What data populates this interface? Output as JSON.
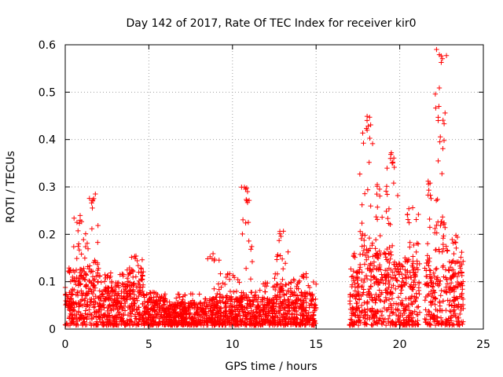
{
  "chart_data": {
    "type": "scatter",
    "title": "Day 142 of 2017, Rate Of TEC Index for receiver kir0",
    "xlabel": "GPS time / hours",
    "ylabel": "ROTI / TECUs",
    "xlim": [
      0,
      25
    ],
    "ylim": [
      0,
      0.6
    ],
    "xticks": [
      0,
      5,
      10,
      15,
      20,
      25
    ],
    "yticks": [
      0,
      0.1,
      0.2,
      0.3,
      0.4,
      0.5,
      0.6
    ],
    "xtick_labels": [
      "0",
      "5",
      "10",
      "15",
      "20",
      "25"
    ],
    "ytick_labels": [
      "0",
      "0.1",
      "0.2",
      "0.3",
      "0.4",
      "0.5",
      "0.6"
    ],
    "grid": true,
    "marker": "+",
    "color": "#ff0000",
    "envelope": [
      {
        "x": [
          0.0,
          0.5
        ],
        "base_max": 0.08,
        "peak": 0.13
      },
      {
        "x": [
          0.5,
          1.2
        ],
        "base_max": 0.12,
        "peak": 0.24
      },
      {
        "x": [
          1.2,
          2.0
        ],
        "base_max": 0.14,
        "peak": 0.28
      },
      {
        "x": [
          2.0,
          3.0
        ],
        "base_max": 0.08,
        "peak": 0.12
      },
      {
        "x": [
          3.0,
          3.7
        ],
        "base_max": 0.09,
        "peak": 0.12
      },
      {
        "x": [
          3.7,
          4.7
        ],
        "base_max": 0.12,
        "peak": 0.155
      },
      {
        "x": [
          4.7,
          6.0
        ],
        "base_max": 0.06,
        "peak": 0.08
      },
      {
        "x": [
          6.0,
          8.5
        ],
        "base_max": 0.05,
        "peak": 0.075
      },
      {
        "x": [
          8.5,
          9.2
        ],
        "base_max": 0.06,
        "peak": 0.16
      },
      {
        "x": [
          9.2,
          10.5
        ],
        "base_max": 0.06,
        "peak": 0.12
      },
      {
        "x": [
          10.5,
          11.2
        ],
        "base_max": 0.07,
        "peak": 0.3
      },
      {
        "x": [
          11.2,
          12.5
        ],
        "base_max": 0.06,
        "peak": 0.1
      },
      {
        "x": [
          12.5,
          13.5
        ],
        "base_max": 0.09,
        "peak": 0.21
      },
      {
        "x": [
          13.5,
          15.0
        ],
        "base_max": 0.07,
        "peak": 0.12
      },
      {
        "x": [
          17.0,
          17.6
        ],
        "base_max": 0.12,
        "peak": 0.16
      },
      {
        "x": [
          17.6,
          18.4
        ],
        "base_max": 0.2,
        "peak": 0.45
      },
      {
        "x": [
          18.4,
          19.2
        ],
        "base_max": 0.16,
        "peak": 0.31
      },
      {
        "x": [
          19.2,
          19.9
        ],
        "base_max": 0.18,
        "peak": 0.37
      },
      {
        "x": [
          19.9,
          21.2
        ],
        "base_max": 0.14,
        "peak": 0.26
      },
      {
        "x": [
          21.5,
          22.1
        ],
        "base_max": 0.15,
        "peak": 0.31
      },
      {
        "x": [
          22.1,
          22.8
        ],
        "base_max": 0.22,
        "peak": 0.59
      },
      {
        "x": [
          22.8,
          23.8
        ],
        "base_max": 0.14,
        "peak": 0.2
      }
    ],
    "notable_points": [
      {
        "x": 1.8,
        "y": 0.285
      },
      {
        "x": 10.85,
        "y": 0.298
      },
      {
        "x": 10.9,
        "y": 0.29
      },
      {
        "x": 10.9,
        "y": 0.267
      },
      {
        "x": 18.05,
        "y": 0.449
      },
      {
        "x": 18.2,
        "y": 0.447
      },
      {
        "x": 19.5,
        "y": 0.372
      },
      {
        "x": 19.45,
        "y": 0.36
      },
      {
        "x": 21.7,
        "y": 0.312
      },
      {
        "x": 22.2,
        "y": 0.59
      },
      {
        "x": 22.3,
        "y": 0.44
      },
      {
        "x": 22.4,
        "y": 0.395
      },
      {
        "x": 22.65,
        "y": 0.398
      },
      {
        "x": 22.3,
        "y": 0.355
      },
      {
        "x": 8.9,
        "y": 0.085
      }
    ]
  }
}
